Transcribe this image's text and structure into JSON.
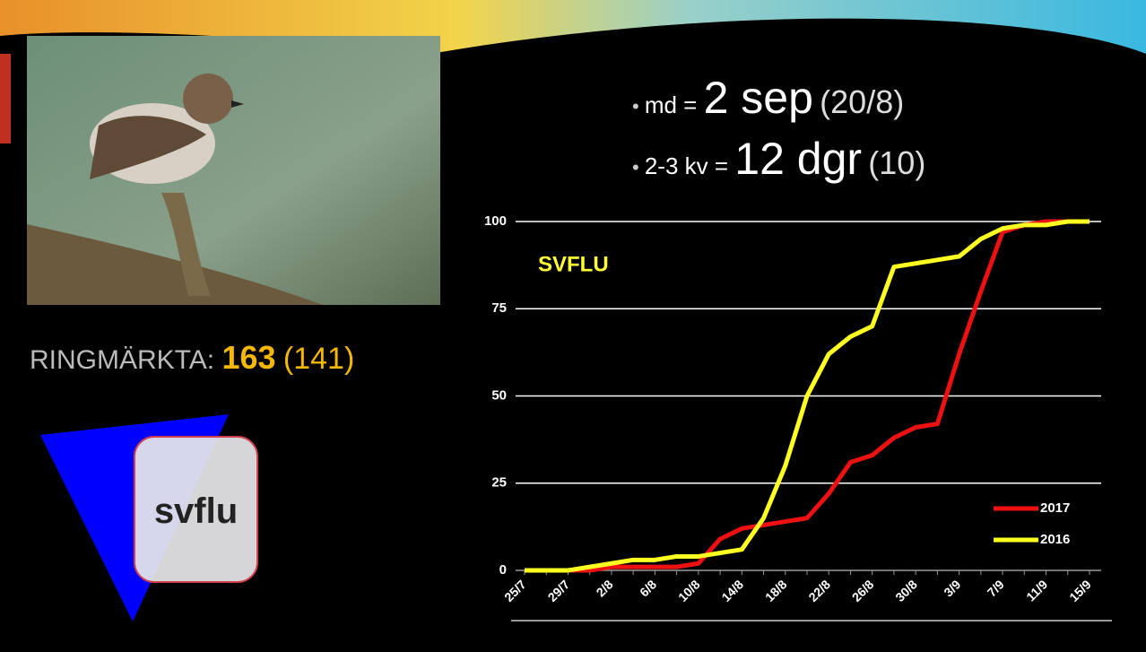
{
  "stats": [
    {
      "label": "md =",
      "value": "2 sep",
      "previous": "(20/8)"
    },
    {
      "label": "2-3 kv =",
      "value": "12 dgr",
      "previous": "(10)"
    }
  ],
  "ringed": {
    "label": "RINGMÄRKTA:",
    "count": "163",
    "previous": "(141)"
  },
  "species_code": "svflu",
  "chart_data": {
    "type": "line",
    "title": "SVFLU",
    "categories": [
      "25/7",
      null,
      "29/7",
      null,
      "2/8",
      null,
      "6/8",
      null,
      "10/8",
      null,
      "14/8",
      null,
      "18/8",
      null,
      "22/8",
      null,
      "26/8",
      null,
      "30/8",
      null,
      "3/9",
      null,
      "7/9",
      null,
      "11/9",
      null,
      "15/9"
    ],
    "series": [
      {
        "name": "2017",
        "color": "#ee1111",
        "values": [
          0,
          0,
          0,
          0,
          1,
          1,
          1,
          1,
          2,
          9,
          12,
          13,
          14,
          15,
          22,
          31,
          33,
          38,
          41,
          42,
          62,
          80,
          97,
          99,
          100,
          100,
          100
        ]
      },
      {
        "name": "2016",
        "color": "#ffff22",
        "values": [
          0,
          0,
          0,
          1,
          2,
          3,
          3,
          4,
          4,
          5,
          6,
          15,
          30,
          50,
          62,
          67,
          70,
          87,
          88,
          89,
          90,
          95,
          98,
          99,
          99,
          100,
          100
        ]
      }
    ],
    "ylim": [
      0,
      100
    ],
    "yticks": [
      0,
      25,
      50,
      75,
      100
    ],
    "grid": true,
    "legend": "lower right"
  }
}
